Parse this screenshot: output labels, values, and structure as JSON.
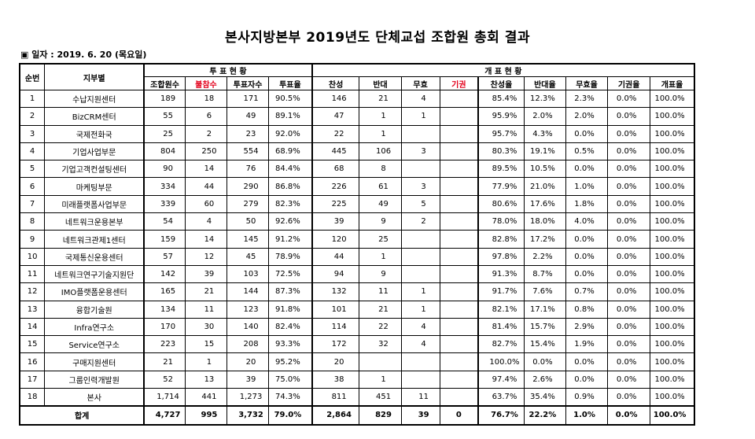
{
  "title": "본사지방본부 2019년도 단체교섭 조합원 총회 결과",
  "date_line": "▣ 일자 : 2019. 6. 20 (목요일)",
  "headers": {
    "seq": "순번",
    "dept": "지부별",
    "vote_group": "투 표 현 황",
    "count_group": "개 표 현 황",
    "members": "조합원수",
    "absent": "불참수",
    "voters": "투표자수",
    "turnout": "투표율",
    "yes": "찬성",
    "no": "반대",
    "invalid": "무효",
    "abstain": "기권",
    "yes_rate": "찬성율",
    "no_rate": "반대율",
    "invalid_rate": "무효율",
    "abstain_rate": "기권율",
    "count_rate": "개표율"
  },
  "rows": [
    {
      "seq": "1",
      "dept": "수납지원센터",
      "members": "189",
      "absent": "18",
      "voters": "171",
      "turnout": "90.5%",
      "yes": "146",
      "no": "21",
      "invalid": "4",
      "abstain": "",
      "yes_rate": "85.4%",
      "no_rate": "12.3%",
      "invalid_rate": "2.3%",
      "abstain_rate": "0.0%",
      "count_rate": "100.0%"
    },
    {
      "seq": "2",
      "dept": "BizCRM센터",
      "members": "55",
      "absent": "6",
      "voters": "49",
      "turnout": "89.1%",
      "yes": "47",
      "no": "1",
      "invalid": "1",
      "abstain": "",
      "yes_rate": "95.9%",
      "no_rate": "2.0%",
      "invalid_rate": "2.0%",
      "abstain_rate": "0.0%",
      "count_rate": "100.0%"
    },
    {
      "seq": "3",
      "dept": "국제전화국",
      "members": "25",
      "absent": "2",
      "voters": "23",
      "turnout": "92.0%",
      "yes": "22",
      "no": "1",
      "invalid": "",
      "abstain": "",
      "yes_rate": "95.7%",
      "no_rate": "4.3%",
      "invalid_rate": "0.0%",
      "abstain_rate": "0.0%",
      "count_rate": "100.0%"
    },
    {
      "seq": "4",
      "dept": "기업사업부문",
      "members": "804",
      "absent": "250",
      "voters": "554",
      "turnout": "68.9%",
      "yes": "445",
      "no": "106",
      "invalid": "3",
      "abstain": "",
      "yes_rate": "80.3%",
      "no_rate": "19.1%",
      "invalid_rate": "0.5%",
      "abstain_rate": "0.0%",
      "count_rate": "100.0%"
    },
    {
      "seq": "5",
      "dept": "기업고객컨설팅센터",
      "members": "90",
      "absent": "14",
      "voters": "76",
      "turnout": "84.4%",
      "yes": "68",
      "no": "8",
      "invalid": "",
      "abstain": "",
      "yes_rate": "89.5%",
      "no_rate": "10.5%",
      "invalid_rate": "0.0%",
      "abstain_rate": "0.0%",
      "count_rate": "100.0%"
    },
    {
      "seq": "6",
      "dept": "마케팅부문",
      "members": "334",
      "absent": "44",
      "voters": "290",
      "turnout": "86.8%",
      "yes": "226",
      "no": "61",
      "invalid": "3",
      "abstain": "",
      "yes_rate": "77.9%",
      "no_rate": "21.0%",
      "invalid_rate": "1.0%",
      "abstain_rate": "0.0%",
      "count_rate": "100.0%"
    },
    {
      "seq": "7",
      "dept": "미래플랫폼사업부문",
      "members": "339",
      "absent": "60",
      "voters": "279",
      "turnout": "82.3%",
      "yes": "225",
      "no": "49",
      "invalid": "5",
      "abstain": "",
      "yes_rate": "80.6%",
      "no_rate": "17.6%",
      "invalid_rate": "1.8%",
      "abstain_rate": "0.0%",
      "count_rate": "100.0%"
    },
    {
      "seq": "8",
      "dept": "네트워크운용본부",
      "members": "54",
      "absent": "4",
      "voters": "50",
      "turnout": "92.6%",
      "yes": "39",
      "no": "9",
      "invalid": "2",
      "abstain": "",
      "yes_rate": "78.0%",
      "no_rate": "18.0%",
      "invalid_rate": "4.0%",
      "abstain_rate": "0.0%",
      "count_rate": "100.0%"
    },
    {
      "seq": "9",
      "dept": "네트워크관제1센터",
      "members": "159",
      "absent": "14",
      "voters": "145",
      "turnout": "91.2%",
      "yes": "120",
      "no": "25",
      "invalid": "",
      "abstain": "",
      "yes_rate": "82.8%",
      "no_rate": "17.2%",
      "invalid_rate": "0.0%",
      "abstain_rate": "0.0%",
      "count_rate": "100.0%"
    },
    {
      "seq": "10",
      "dept": "국제통신운용센터",
      "members": "57",
      "absent": "12",
      "voters": "45",
      "turnout": "78.9%",
      "yes": "44",
      "no": "1",
      "invalid": "",
      "abstain": "",
      "yes_rate": "97.8%",
      "no_rate": "2.2%",
      "invalid_rate": "0.0%",
      "abstain_rate": "0.0%",
      "count_rate": "100.0%"
    },
    {
      "seq": "11",
      "dept": "네트워크연구기술지원단",
      "members": "142",
      "absent": "39",
      "voters": "103",
      "turnout": "72.5%",
      "yes": "94",
      "no": "9",
      "invalid": "",
      "abstain": "",
      "yes_rate": "91.3%",
      "no_rate": "8.7%",
      "invalid_rate": "0.0%",
      "abstain_rate": "0.0%",
      "count_rate": "100.0%"
    },
    {
      "seq": "12",
      "dept": "IMO플랫폼운용센터",
      "members": "165",
      "absent": "21",
      "voters": "144",
      "turnout": "87.3%",
      "yes": "132",
      "no": "11",
      "invalid": "1",
      "abstain": "",
      "yes_rate": "91.7%",
      "no_rate": "7.6%",
      "invalid_rate": "0.7%",
      "abstain_rate": "0.0%",
      "count_rate": "100.0%"
    },
    {
      "seq": "13",
      "dept": "융합기술원",
      "members": "134",
      "absent": "11",
      "voters": "123",
      "turnout": "91.8%",
      "yes": "101",
      "no": "21",
      "invalid": "1",
      "abstain": "",
      "yes_rate": "82.1%",
      "no_rate": "17.1%",
      "invalid_rate": "0.8%",
      "abstain_rate": "0.0%",
      "count_rate": "100.0%"
    },
    {
      "seq": "14",
      "dept": "Infra연구소",
      "members": "170",
      "absent": "30",
      "voters": "140",
      "turnout": "82.4%",
      "yes": "114",
      "no": "22",
      "invalid": "4",
      "abstain": "",
      "yes_rate": "81.4%",
      "no_rate": "15.7%",
      "invalid_rate": "2.9%",
      "abstain_rate": "0.0%",
      "count_rate": "100.0%"
    },
    {
      "seq": "15",
      "dept": "Service연구소",
      "members": "223",
      "absent": "15",
      "voters": "208",
      "turnout": "93.3%",
      "yes": "172",
      "no": "32",
      "invalid": "4",
      "abstain": "",
      "yes_rate": "82.7%",
      "no_rate": "15.4%",
      "invalid_rate": "1.9%",
      "abstain_rate": "0.0%",
      "count_rate": "100.0%"
    },
    {
      "seq": "16",
      "dept": "구매지원센터",
      "members": "21",
      "absent": "1",
      "voters": "20",
      "turnout": "95.2%",
      "yes": "20",
      "no": "",
      "invalid": "",
      "abstain": "",
      "yes_rate": "100.0%",
      "no_rate": "0.0%",
      "invalid_rate": "0.0%",
      "abstain_rate": "0.0%",
      "count_rate": "100.0%"
    },
    {
      "seq": "17",
      "dept": "그룹인력개발원",
      "members": "52",
      "absent": "13",
      "voters": "39",
      "turnout": "75.0%",
      "yes": "38",
      "no": "1",
      "invalid": "",
      "abstain": "",
      "yes_rate": "97.4%",
      "no_rate": "2.6%",
      "invalid_rate": "0.0%",
      "abstain_rate": "0.0%",
      "count_rate": "100.0%"
    },
    {
      "seq": "18",
      "dept": "본사",
      "members": "1,714",
      "absent": "441",
      "voters": "1,273",
      "turnout": "74.3%",
      "yes": "811",
      "no": "451",
      "invalid": "11",
      "abstain": "",
      "yes_rate": "63.7%",
      "no_rate": "35.4%",
      "invalid_rate": "0.9%",
      "abstain_rate": "0.0%",
      "count_rate": "100.0%"
    }
  ],
  "total": {
    "label": "합계",
    "members": "4,727",
    "absent": "995",
    "voters": "3,732",
    "turnout": "79.0%",
    "yes": "2,864",
    "no": "829",
    "invalid": "39",
    "abstain": "0",
    "yes_rate": "76.7%",
    "no_rate": "22.2%",
    "invalid_rate": "1.0%",
    "abstain_rate": "0.0%",
    "count_rate": "100.0%"
  },
  "colors": {
    "red_header": "#e3001b",
    "border": "#000000"
  }
}
